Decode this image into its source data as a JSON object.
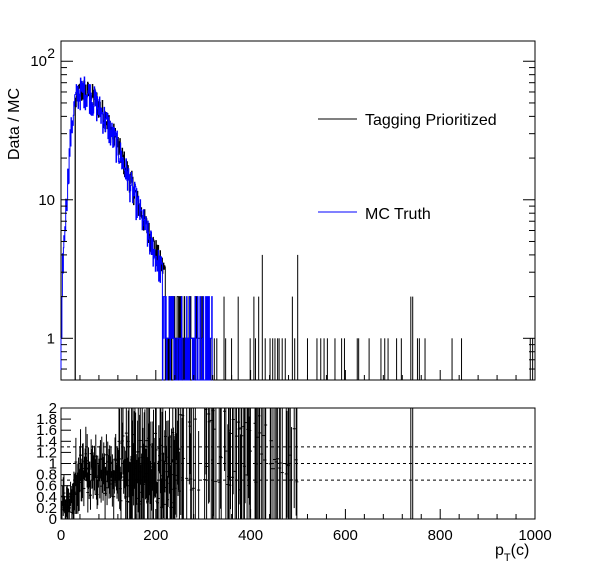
{
  "chart_data": [
    {
      "type": "line",
      "panel": "main",
      "ylabel": "Data / MC",
      "yscale": "log",
      "xlim": [
        0,
        1000
      ],
      "ylim": [
        0.5,
        140
      ],
      "yticks": [
        {
          "value": 1,
          "base": "1",
          "exp": ""
        },
        {
          "value": 10,
          "base": "10",
          "exp": ""
        },
        {
          "value": 100,
          "base": "10",
          "exp": "2"
        }
      ],
      "legend": {
        "placement": "right-middle",
        "entries": [
          "Tagging Prioritized",
          "MC Truth"
        ]
      },
      "series": [
        {
          "name": "Tagging Prioritized",
          "color": "#000000",
          "shape_x": [
            30,
            40,
            50,
            60,
            70,
            80,
            90,
            100,
            110,
            120,
            130,
            140,
            150,
            160,
            170,
            180,
            190,
            200,
            210,
            220,
            230,
            240,
            250,
            260,
            270,
            280,
            290,
            300,
            320,
            340,
            360,
            380,
            400,
            420,
            440,
            460,
            480,
            500
          ],
          "shape_y": [
            50,
            60,
            62,
            58,
            55,
            48,
            42,
            36,
            30,
            25,
            20,
            16,
            13,
            10,
            8,
            6.5,
            5.2,
            4.3,
            3.5,
            3.0,
            2.6,
            2.3,
            2.0,
            1.9,
            1.8,
            1.7,
            1.6,
            1.5,
            1.4,
            1.35,
            1.3,
            1.25,
            1.2,
            1.15,
            1.1,
            1.1,
            1.05,
            1.0
          ],
          "sparse_peaks": [
            {
              "x": 520,
              "y": 1
            },
            {
              "x": 540,
              "y": 1
            },
            {
              "x": 548,
              "y": 1
            },
            {
              "x": 555,
              "y": 1
            },
            {
              "x": 562,
              "y": 1
            },
            {
              "x": 578,
              "y": 1
            },
            {
              "x": 592,
              "y": 1
            },
            {
              "x": 598,
              "y": 1
            },
            {
              "x": 625,
              "y": 1
            },
            {
              "x": 628,
              "y": 1
            },
            {
              "x": 650,
              "y": 1
            },
            {
              "x": 675,
              "y": 1
            },
            {
              "x": 683,
              "y": 1
            },
            {
              "x": 690,
              "y": 1
            },
            {
              "x": 708,
              "y": 1
            },
            {
              "x": 718,
              "y": 1
            },
            {
              "x": 738,
              "y": 2
            },
            {
              "x": 742,
              "y": 2
            },
            {
              "x": 752,
              "y": 1
            },
            {
              "x": 756,
              "y": 1
            },
            {
              "x": 768,
              "y": 1
            },
            {
              "x": 825,
              "y": 1
            },
            {
              "x": 845,
              "y": 1
            },
            {
              "x": 990,
              "y": 1
            },
            {
              "x": 995,
              "y": 1
            }
          ]
        },
        {
          "name": "MC Truth",
          "color": "#0000ff",
          "shape_x": [
            0,
            5,
            10,
            15,
            20,
            25,
            30,
            35,
            40,
            50,
            60,
            70,
            80,
            90,
            100,
            110,
            120,
            130,
            140,
            150,
            160,
            170,
            180,
            190,
            200,
            210,
            220,
            230,
            240,
            250,
            260,
            270,
            280,
            290,
            300,
            310,
            320
          ],
          "shape_y": [
            2,
            4,
            8,
            15,
            28,
            40,
            52,
            58,
            60,
            62,
            58,
            52,
            46,
            40,
            34,
            28,
            24,
            19,
            15,
            12,
            9.5,
            7.5,
            6,
            4.8,
            3.9,
            3.2,
            2.7,
            2.3,
            2.0,
            1.8,
            1.6,
            1.5,
            1.4,
            1.3,
            1.2,
            1.15,
            1.1
          ]
        }
      ]
    },
    {
      "type": "scatter",
      "panel": "ratio",
      "xlabel_base": "p",
      "xlabel_sub": "T",
      "xlabel_suffix": "(c)",
      "xlim": [
        0,
        1000
      ],
      "ylim": [
        0,
        2
      ],
      "xticks": [
        "0",
        "200",
        "400",
        "600",
        "800",
        "1000"
      ],
      "yticks": [
        "0",
        "0.2",
        "0.4",
        "0.6",
        "0.8",
        "1",
        "1.2",
        "1.4",
        "1.6",
        "1.8",
        "2"
      ],
      "reference_lines": [
        0.7,
        1.0,
        1.3
      ],
      "color": "#000000"
    }
  ]
}
